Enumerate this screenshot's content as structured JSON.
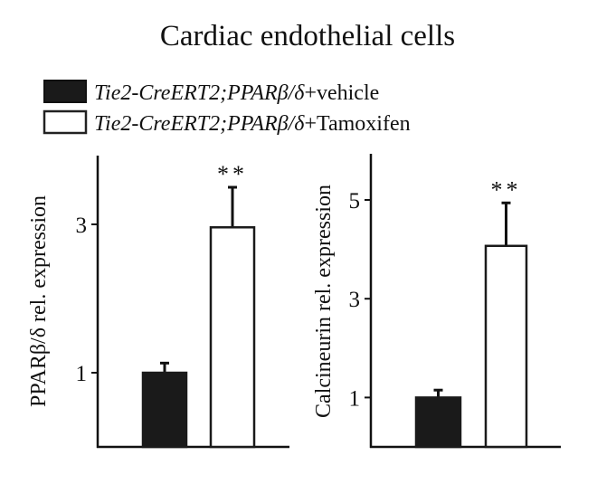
{
  "title": "Cardiac endothelial cells",
  "legend": [
    {
      "italic": "Tie2-CreERT2;PPARβ/δ",
      "suffix": "+vehicle",
      "fill": "#1a1a1a"
    },
    {
      "italic": "Tie2-CreERT2;PPARβ/δ",
      "suffix": "+Tamoxifen",
      "fill": "#ffffff"
    }
  ],
  "chart_data": [
    {
      "type": "bar",
      "ylabel": "PPARβ/δ rel. expression",
      "yticks": [
        1,
        3
      ],
      "ylim": [
        0,
        4.2
      ],
      "series": [
        {
          "name": "Tie2-CreERT2;PPARβ/δ+vehicle",
          "value": 1.0,
          "error": 0.13,
          "fill": "#1a1a1a"
        },
        {
          "name": "Tie2-CreERT2;PPARβ/δ+Tamoxifen",
          "value": 2.96,
          "error": 0.54,
          "fill": "#ffffff",
          "annotation": "**"
        }
      ]
    },
    {
      "type": "bar",
      "ylabel": "Calcineurin rel. expression",
      "yticks": [
        1,
        3,
        5
      ],
      "ylim": [
        0,
        6
      ],
      "series": [
        {
          "name": "Tie2-CreERT2;PPARβ/δ+vehicle",
          "value": 1.0,
          "error": 0.15,
          "fill": "#1a1a1a"
        },
        {
          "name": "Tie2-CreERT2;PPARβ/δ+Tamoxifen",
          "value": 4.07,
          "error": 0.87,
          "fill": "#ffffff",
          "annotation": "**"
        }
      ]
    }
  ]
}
